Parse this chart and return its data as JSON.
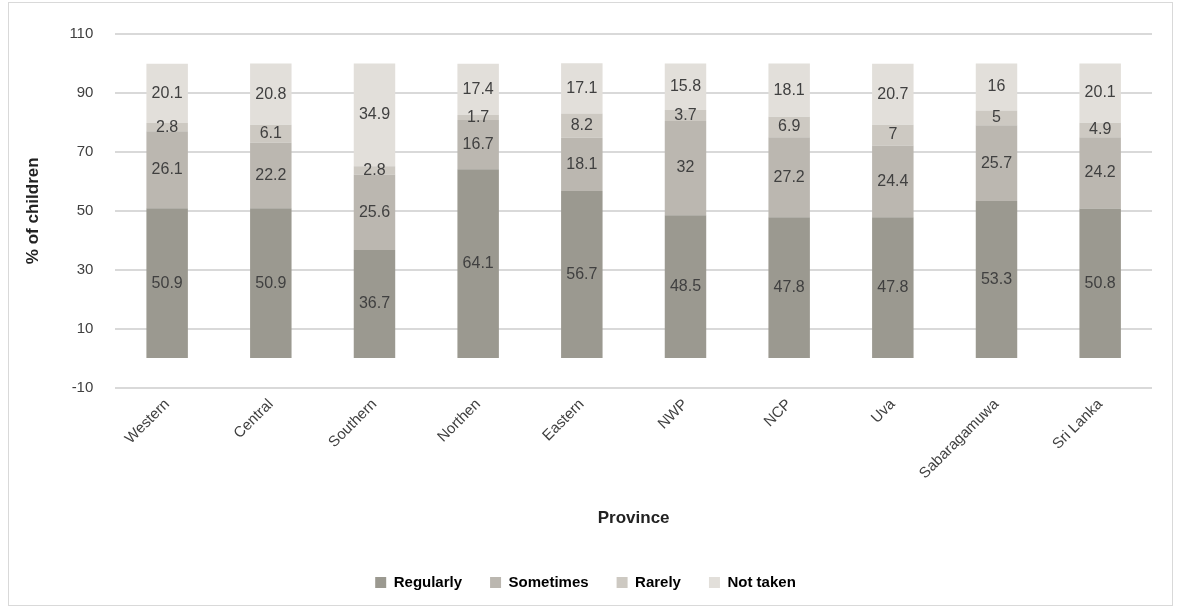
{
  "chart_data": {
    "type": "bar",
    "stacked": true,
    "xlabel": "Province",
    "ylabel": "% of children",
    "categories": [
      "Western",
      "Central",
      "Southern",
      "Northen",
      "Eastern",
      "NWP",
      "NCP",
      "Uva",
      "Sabaragamuwa",
      "Sri Lanka"
    ],
    "series": [
      {
        "name": "Regularly",
        "color": "#9b9990",
        "values": [
          50.9,
          50.9,
          36.7,
          64.1,
          56.7,
          48.5,
          47.8,
          47.8,
          53.3,
          50.8
        ]
      },
      {
        "name": "Sometimes",
        "color": "#bbb7b0",
        "values": [
          26.1,
          22.2,
          25.6,
          16.7,
          18.1,
          32,
          27.2,
          24.4,
          25.7,
          24.2
        ]
      },
      {
        "name": "Rarely",
        "color": "#cdc9c2",
        "values": [
          2.8,
          6.1,
          2.8,
          1.7,
          8.2,
          3.7,
          6.9,
          7,
          5,
          4.9
        ]
      },
      {
        "name": "Not taken",
        "color": "#e2dfda",
        "values": [
          20.1,
          20.8,
          34.9,
          17.4,
          17.1,
          15.8,
          18.1,
          20.7,
          16,
          20.1
        ]
      }
    ],
    "ylim": [
      -10,
      110
    ],
    "yticks": [
      -10,
      10,
      30,
      50,
      70,
      90,
      110
    ],
    "grid": "y",
    "legend": "bottom",
    "data_labels": true
  }
}
